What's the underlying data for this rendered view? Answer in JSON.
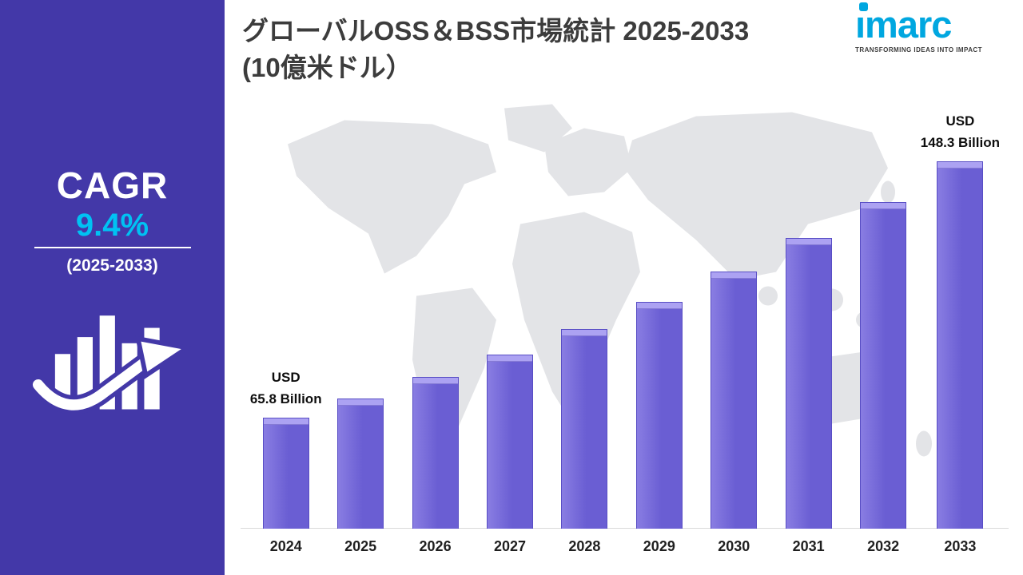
{
  "sidebar": {
    "cagr_label": "CAGR",
    "cagr_value": "9.4%",
    "period": "(2025-2033)"
  },
  "header": {
    "title_line1": "グローバルOSS＆BSS市場統計 2025-2033",
    "title_line2": "(10億米ドル）"
  },
  "logo": {
    "name": "imarc",
    "tagline": "TRANSFORMING IDEAS INTO IMPACT",
    "color": "#00a7e0"
  },
  "colors": {
    "sidebar_bg": "#4338a8",
    "accent_cyan": "#00c2f3",
    "title_text": "#3c3c3c",
    "map_land": "#e3e4e7"
  },
  "chart_data": {
    "type": "bar",
    "title": "グローバルOSS＆BSS市場統計 2025-2033 (10億米ドル）",
    "xlabel": "",
    "ylabel": "USD Billion",
    "categories": [
      "2024",
      "2025",
      "2026",
      "2027",
      "2028",
      "2029",
      "2030",
      "2031",
      "2032",
      "2033"
    ],
    "values": [
      65.8,
      72.0,
      78.7,
      86.1,
      94.2,
      103.1,
      112.8,
      123.4,
      135.0,
      148.3
    ],
    "unit": "USD Billion",
    "cagr": "9.4%",
    "first_label": [
      "USD",
      "65.8 Billion"
    ],
    "last_label": [
      "USD",
      "148.3 Billion"
    ],
    "bar_color": "#6a5ed3",
    "bar_color_light": "#897de2",
    "bar_top_color": "#aca2f2",
    "ylim": [
      30,
      178
    ],
    "grid": false,
    "legend": false
  }
}
